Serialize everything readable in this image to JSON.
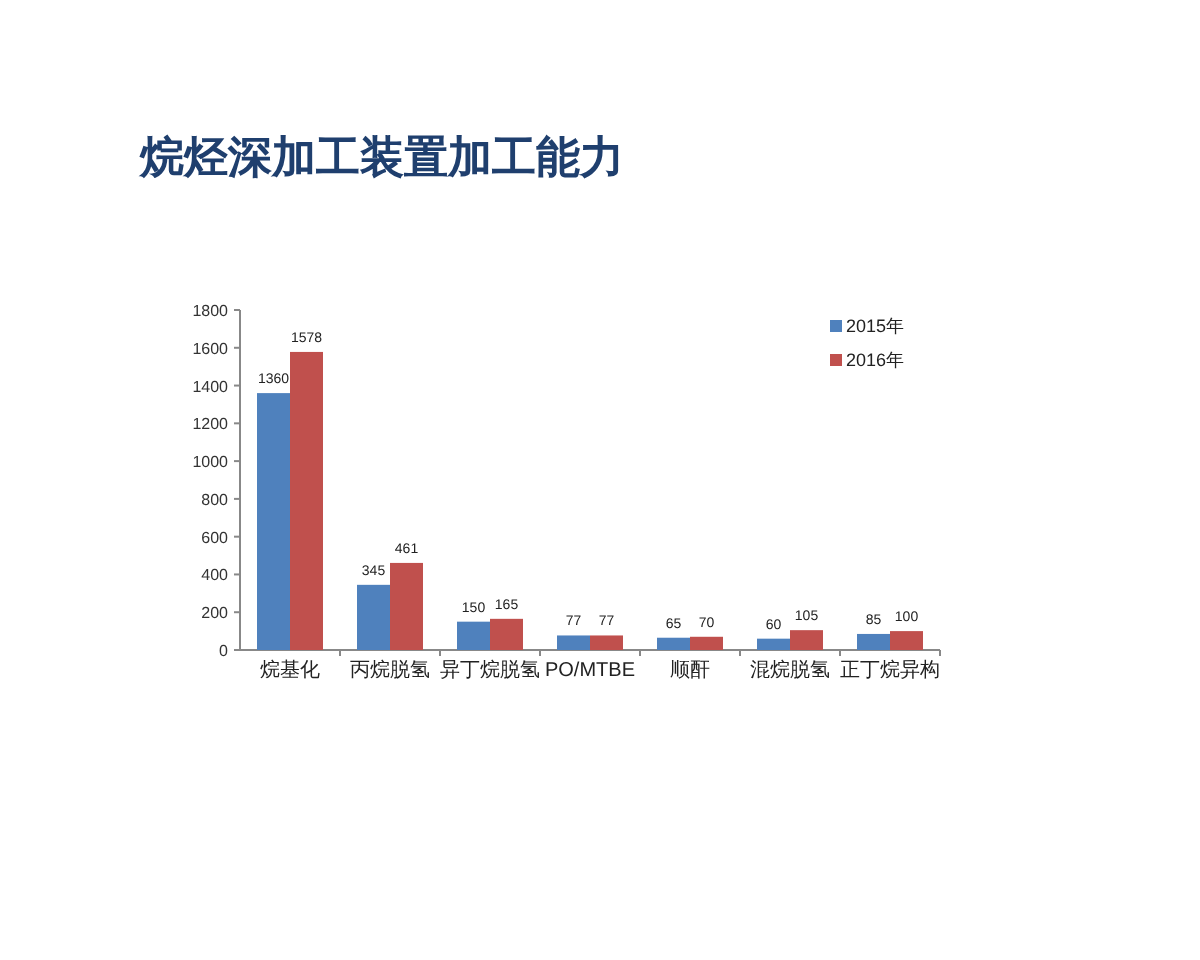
{
  "chart_data": {
    "type": "bar",
    "title": "烷烃深加工装置加工能力",
    "categories": [
      "烷基化",
      "丙烷脱氢",
      "异丁烷脱氢",
      "PO/MTBE",
      "顺酐",
      "混烷脱氢",
      "正丁烷异构"
    ],
    "series": [
      {
        "name": "2015年",
        "color": "#4f81bd",
        "values": [
          1360,
          345,
          150,
          77,
          65,
          60,
          85
        ]
      },
      {
        "name": "2016年",
        "color": "#c0504d",
        "values": [
          1578,
          461,
          165,
          77,
          70,
          105,
          100
        ]
      }
    ],
    "ylim": [
      0,
      1800
    ],
    "yticks": [
      0,
      200,
      400,
      600,
      800,
      1000,
      1200,
      1400,
      1600,
      1800
    ],
    "data_labels": true,
    "legend": "top right"
  }
}
